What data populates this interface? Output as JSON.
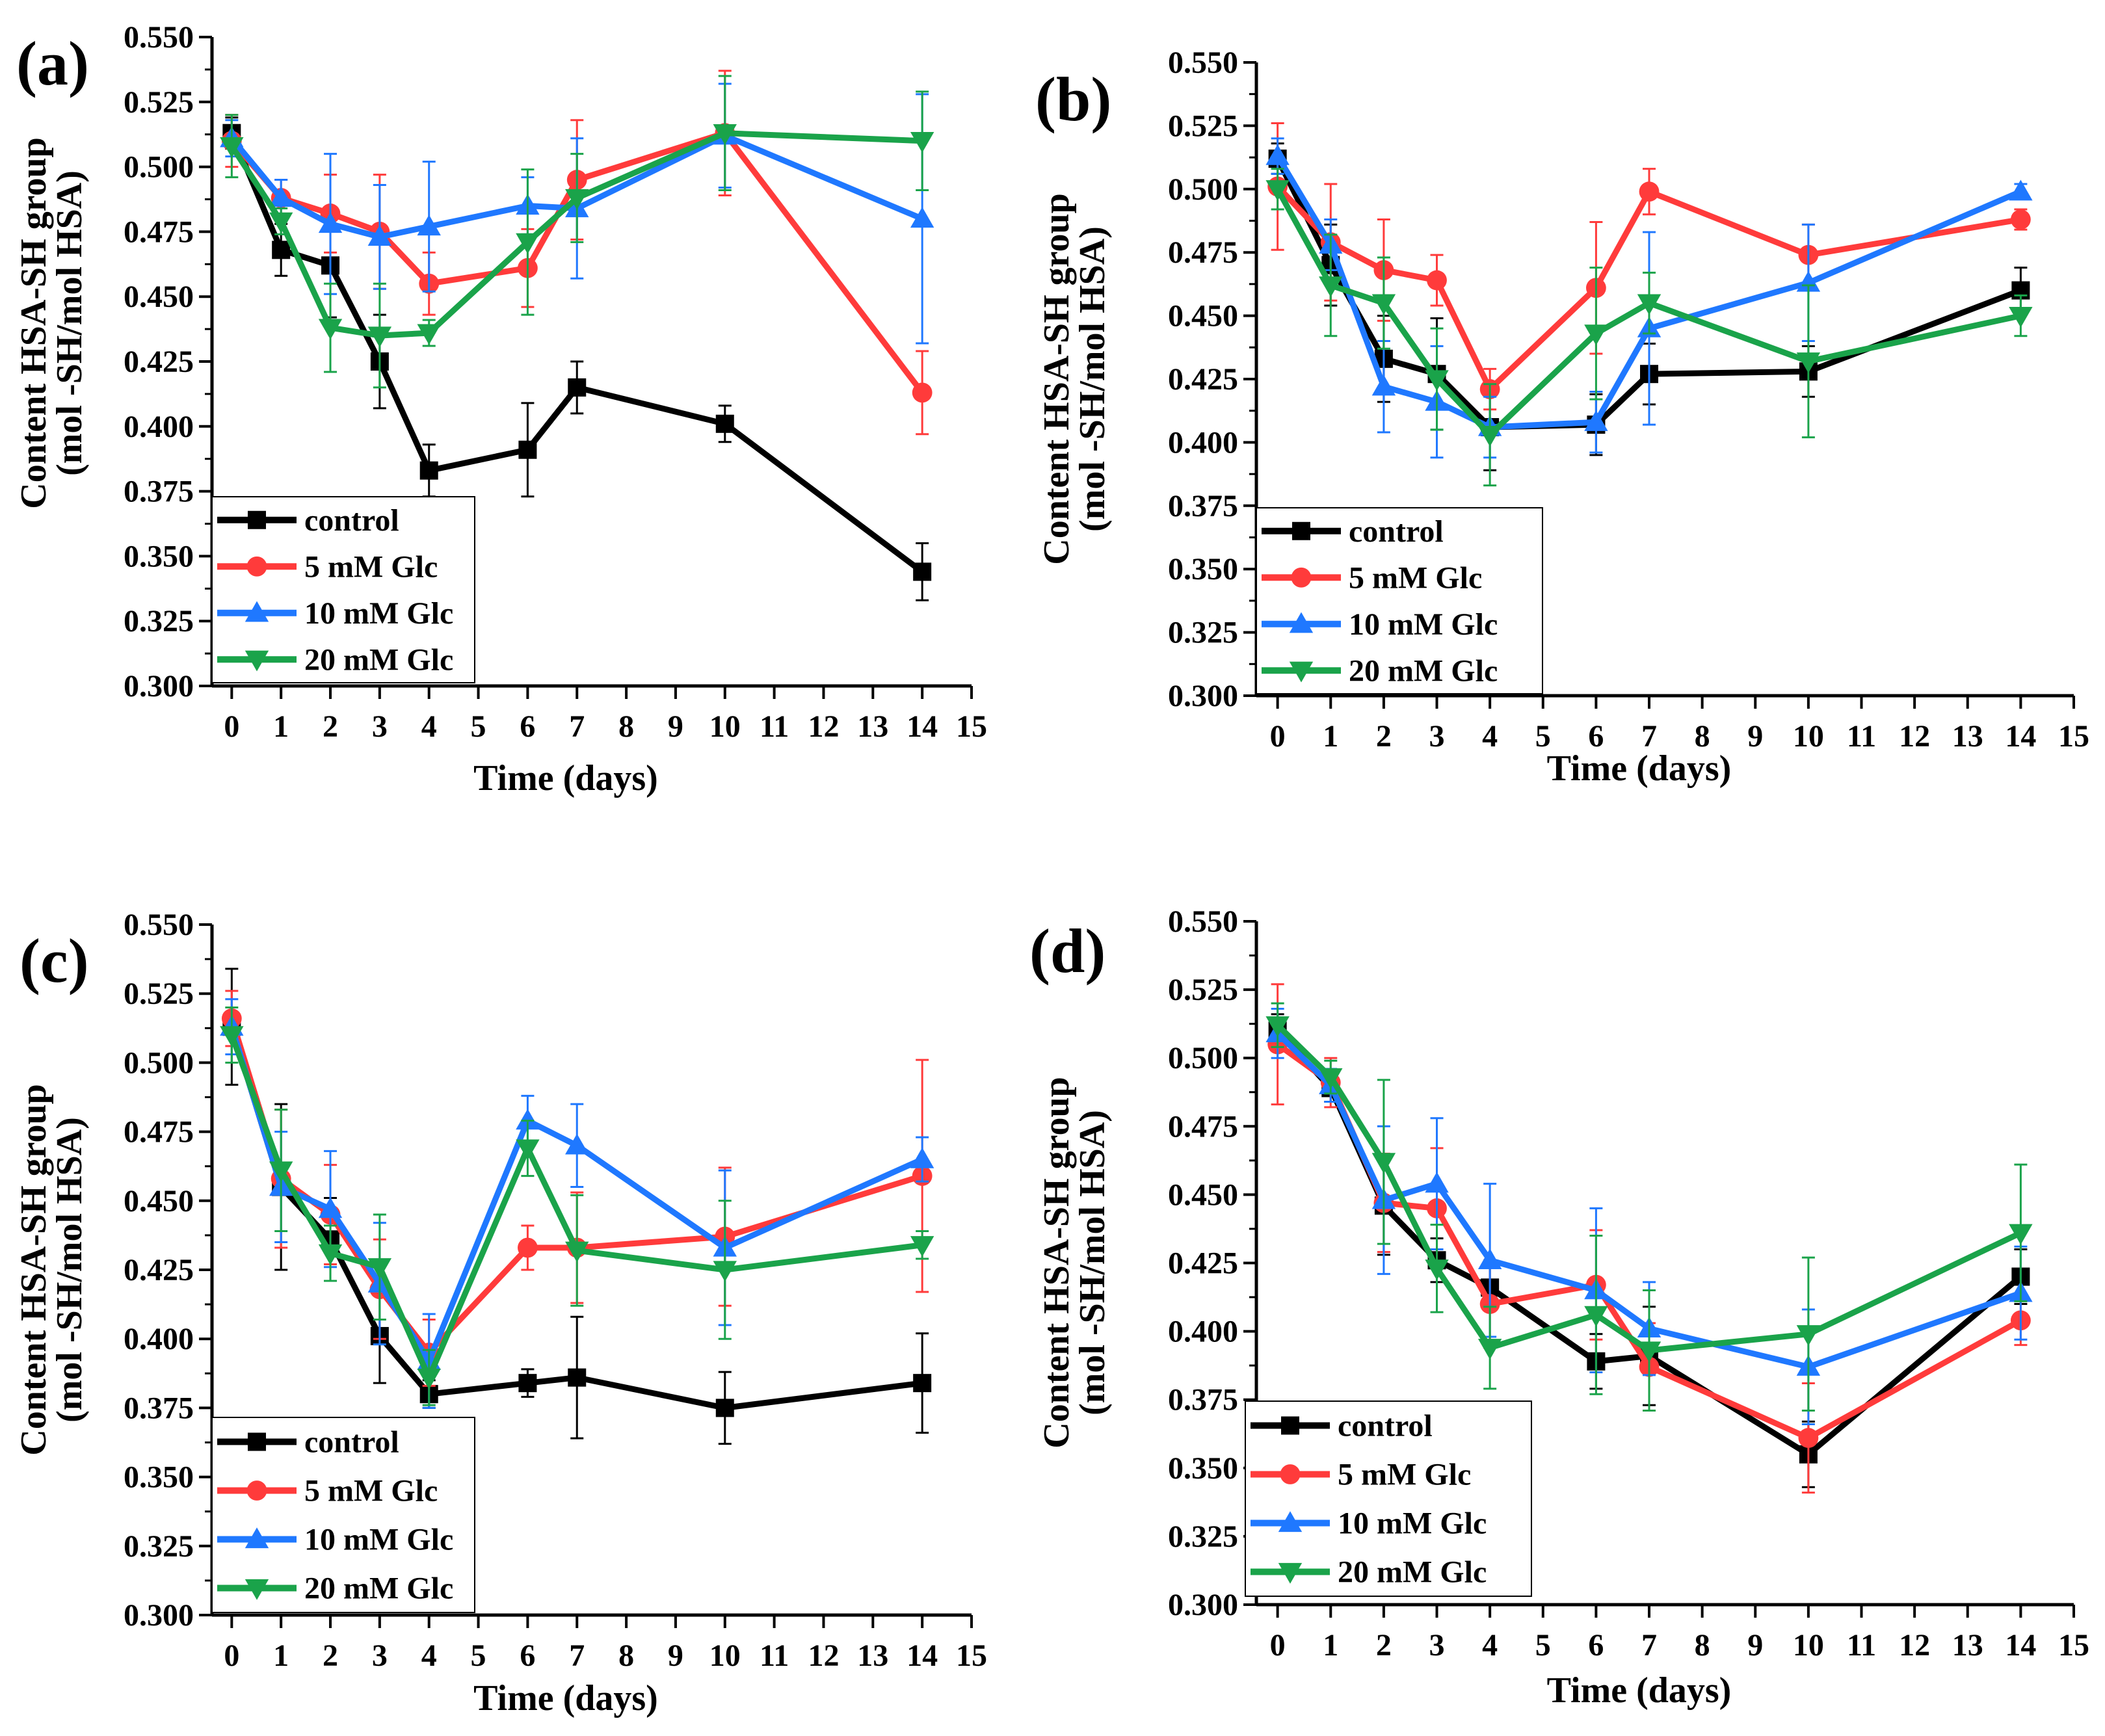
{
  "figure": {
    "colors": {
      "control": "#000000",
      "glc5": "#ff3b3b",
      "glc10": "#1f78ff",
      "glc20": "#1aa34a"
    },
    "markers": {
      "control": "square",
      "glc5": "circle",
      "glc10": "triangle-up",
      "glc20": "triangle-down"
    }
  },
  "chart_data": [
    {
      "panel": "(a)",
      "type": "line",
      "xlabel": "Time (days)",
      "ylabel": [
        "Content HSA-SH group",
        "(mol -SH/mol HSA)"
      ],
      "xlim": [
        -0.4,
        15
      ],
      "ylim": [
        0.3,
        0.55
      ],
      "x_ticks": [
        0,
        1,
        2,
        3,
        4,
        5,
        6,
        7,
        8,
        9,
        10,
        11,
        12,
        13,
        14,
        15
      ],
      "y_ticks": [
        "0.300",
        "0.325",
        "0.350",
        "0.375",
        "0.400",
        "0.425",
        "0.450",
        "0.475",
        "0.500",
        "0.525",
        "0.550"
      ],
      "x": [
        0,
        1,
        2,
        3,
        4,
        6,
        7,
        10,
        14
      ],
      "legend_position": "bottom-left",
      "series": [
        {
          "name": "control",
          "key": "control",
          "values": [
            0.513,
            0.468,
            0.462,
            0.425,
            0.383,
            0.391,
            0.415,
            0.401,
            0.344
          ],
          "errors": [
            0.006,
            0.01,
            0.02,
            0.018,
            0.01,
            0.018,
            0.01,
            0.007,
            0.011
          ]
        },
        {
          "name": "5 mM Glc",
          "key": "glc5",
          "values": [
            0.51,
            0.488,
            0.482,
            0.475,
            0.455,
            0.461,
            0.495,
            0.513,
            0.413
          ],
          "errors": [
            0.01,
            0.007,
            0.015,
            0.022,
            0.012,
            0.015,
            0.023,
            0.024,
            0.016
          ]
        },
        {
          "name": "10 mM Glc",
          "key": "glc10",
          "values": [
            0.511,
            0.488,
            0.478,
            0.473,
            0.477,
            0.485,
            0.484,
            0.512,
            0.48
          ],
          "errors": [
            0.007,
            0.007,
            0.027,
            0.02,
            0.025,
            0.011,
            0.027,
            0.02,
            0.048
          ]
        },
        {
          "name": "20 mM Glc",
          "key": "glc20",
          "values": [
            0.508,
            0.479,
            0.438,
            0.435,
            0.436,
            0.471,
            0.488,
            0.513,
            0.51
          ],
          "errors": [
            0.012,
            0.005,
            0.017,
            0.02,
            0.005,
            0.028,
            0.017,
            0.022,
            0.019
          ]
        }
      ]
    },
    {
      "panel": "(b)",
      "type": "line",
      "xlabel": "Time (days)",
      "ylabel": [
        "Content HSA-SH group",
        "(mol -SH/mol HSA)"
      ],
      "xlim": [
        -0.4,
        15
      ],
      "ylim": [
        0.3,
        0.55
      ],
      "x_ticks": [
        0,
        1,
        2,
        3,
        4,
        5,
        6,
        7,
        8,
        9,
        10,
        11,
        12,
        13,
        14,
        15
      ],
      "y_ticks": [
        "0.300",
        "0.325",
        "0.350",
        "0.375",
        "0.400",
        "0.425",
        "0.450",
        "0.475",
        "0.500",
        "0.525",
        "0.550"
      ],
      "x": [
        0,
        1,
        2,
        3,
        4,
        6,
        7,
        10,
        14
      ],
      "legend_position": "bottom-left",
      "series": [
        {
          "name": "control",
          "key": "control",
          "values": [
            0.512,
            0.47,
            0.433,
            0.427,
            0.406,
            0.407,
            0.427,
            0.428,
            0.46
          ],
          "errors": [
            0.006,
            0.016,
            0.017,
            0.022,
            0.017,
            0.012,
            0.012,
            0.01,
            0.009
          ]
        },
        {
          "name": "5 mM Glc",
          "key": "glc5",
          "values": [
            0.501,
            0.479,
            0.468,
            0.464,
            0.421,
            0.461,
            0.499,
            0.474,
            0.488
          ],
          "errors": [
            0.025,
            0.023,
            0.02,
            0.01,
            0.008,
            0.026,
            0.009,
            0.012,
            0.004
          ]
        },
        {
          "name": "10 mM Glc",
          "key": "glc10",
          "values": [
            0.513,
            0.478,
            0.422,
            0.416,
            0.406,
            0.408,
            0.445,
            0.463,
            0.499
          ],
          "errors": [
            0.007,
            0.01,
            0.018,
            0.022,
            0.012,
            0.012,
            0.038,
            0.023,
            0.003
          ]
        },
        {
          "name": "20 mM Glc",
          "key": "glc20",
          "values": [
            0.5,
            0.462,
            0.455,
            0.425,
            0.403,
            0.443,
            0.455,
            0.432,
            0.45
          ],
          "errors": [
            0.008,
            0.02,
            0.018,
            0.02,
            0.02,
            0.026,
            0.012,
            0.03,
            0.008
          ]
        }
      ]
    },
    {
      "panel": "(c)",
      "type": "line",
      "xlabel": "Time (days)",
      "ylabel": [
        "Content HSA-SH group",
        "(mol -SH/mol HSA)"
      ],
      "xlim": [
        -0.4,
        15
      ],
      "ylim": [
        0.3,
        0.55
      ],
      "x_ticks": [
        0,
        1,
        2,
        3,
        4,
        5,
        6,
        7,
        8,
        9,
        10,
        11,
        12,
        13,
        14,
        15
      ],
      "y_ticks": [
        "0.300",
        "0.325",
        "0.350",
        "0.375",
        "0.400",
        "0.425",
        "0.450",
        "0.475",
        "0.500",
        "0.525",
        "0.550"
      ],
      "x": [
        0,
        1,
        2,
        3,
        4,
        6,
        7,
        10,
        14
      ],
      "legend_position": "bottom-left",
      "series": [
        {
          "name": "control",
          "key": "control",
          "values": [
            0.513,
            0.455,
            0.436,
            0.401,
            0.38,
            0.384,
            0.386,
            0.375,
            0.384
          ],
          "errors": [
            0.021,
            0.03,
            0.015,
            0.017,
            0.005,
            0.005,
            0.022,
            0.013,
            0.018
          ]
        },
        {
          "name": "5 mM Glc",
          "key": "glc5",
          "values": [
            0.516,
            0.458,
            0.445,
            0.418,
            0.395,
            0.433,
            0.433,
            0.437,
            0.459
          ],
          "errors": [
            0.01,
            0.025,
            0.018,
            0.018,
            0.012,
            0.008,
            0.02,
            0.025,
            0.042
          ]
        },
        {
          "name": "10 mM Glc",
          "key": "glc10",
          "values": [
            0.513,
            0.455,
            0.447,
            0.42,
            0.392,
            0.479,
            0.47,
            0.433,
            0.465
          ],
          "errors": [
            0.01,
            0.02,
            0.021,
            0.022,
            0.017,
            0.009,
            0.015,
            0.028,
            0.008
          ]
        },
        {
          "name": "20 mM Glc",
          "key": "glc20",
          "values": [
            0.51,
            0.461,
            0.431,
            0.426,
            0.386,
            0.469,
            0.432,
            0.425,
            0.434
          ],
          "errors": [
            0.01,
            0.022,
            0.01,
            0.019,
            0.01,
            0.01,
            0.02,
            0.025,
            0.005
          ]
        }
      ]
    },
    {
      "panel": "(d)",
      "type": "line",
      "xlabel": "Time (days)",
      "ylabel": [
        "Content HSA-SH group",
        "(mol -SH/mol HSA)"
      ],
      "xlim": [
        -0.4,
        15
      ],
      "ylim": [
        0.3,
        0.55
      ],
      "x_ticks": [
        0,
        1,
        2,
        3,
        4,
        5,
        6,
        7,
        8,
        9,
        10,
        11,
        12,
        13,
        14,
        15
      ],
      "y_ticks": [
        "0.300",
        "0.325",
        "0.350",
        "0.375",
        "0.400",
        "0.425",
        "0.450",
        "0.475",
        "0.500",
        "0.525",
        "0.550"
      ],
      "x": [
        0,
        1,
        2,
        3,
        4,
        6,
        7,
        10,
        14
      ],
      "legend_position": "bottom-left",
      "series": [
        {
          "name": "control",
          "key": "control",
          "values": [
            0.51,
            0.489,
            0.446,
            0.426,
            0.416,
            0.389,
            0.391,
            0.355,
            0.42
          ],
          "errors": [
            0.006,
            0.005,
            0.018,
            0.008,
            0.008,
            0.01,
            0.018,
            0.012,
            0.01
          ]
        },
        {
          "name": "5 mM Glc",
          "key": "glc5",
          "values": [
            0.505,
            0.491,
            0.447,
            0.445,
            0.41,
            0.417,
            0.387,
            0.361,
            0.404
          ],
          "errors": [
            0.022,
            0.009,
            0.018,
            0.022,
            0.016,
            0.02,
            0.016,
            0.02,
            0.009
          ]
        },
        {
          "name": "10 mM Glc",
          "key": "glc10",
          "values": [
            0.509,
            0.49,
            0.448,
            0.454,
            0.426,
            0.415,
            0.401,
            0.387,
            0.414
          ],
          "errors": [
            0.009,
            0.006,
            0.027,
            0.024,
            0.028,
            0.03,
            0.017,
            0.021,
            0.017
          ]
        },
        {
          "name": "20 mM Glc",
          "key": "glc20",
          "values": [
            0.512,
            0.493,
            0.462,
            0.423,
            0.394,
            0.406,
            0.393,
            0.399,
            0.436
          ],
          "errors": [
            0.008,
            0.006,
            0.03,
            0.016,
            0.015,
            0.029,
            0.022,
            0.028,
            0.025
          ]
        }
      ]
    }
  ]
}
